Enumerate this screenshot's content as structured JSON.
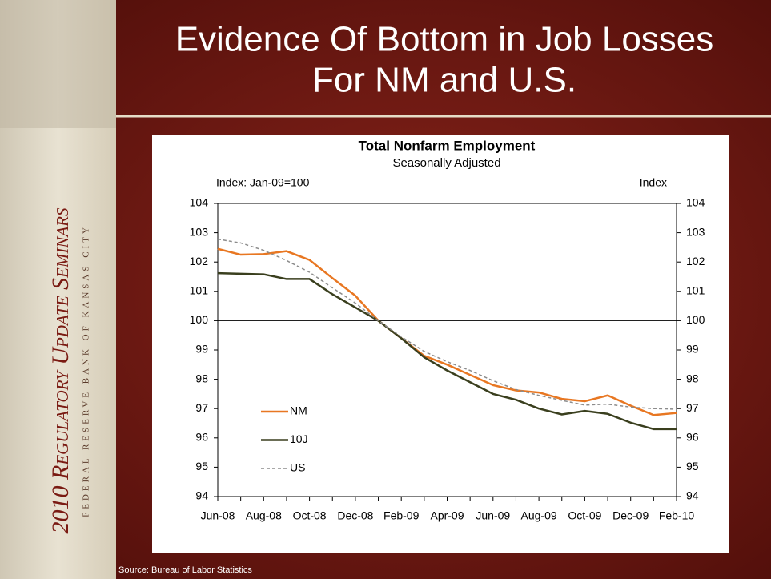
{
  "slide": {
    "title": [
      "Evidence Of Bottom in Job Losses",
      "For NM and U.S."
    ],
    "sidebar_title": "2010 Regulatory Update Seminars",
    "sidebar_subtitle": "Federal Reserve Bank of Kansas City",
    "source": "Source: Bureau of Labor Statistics"
  },
  "chart_data": {
    "type": "line",
    "title": "Total Nonfarm Employment",
    "subtitle": "Seasonally Adjusted",
    "ylabel": "Index: Jan-09=100",
    "y2label": "Index",
    "categories": [
      "Jun-08",
      null,
      "Aug-08",
      null,
      "Oct-08",
      null,
      "Dec-08",
      null,
      "Feb-09",
      null,
      "Apr-09",
      null,
      "Jun-09",
      null,
      "Aug-09",
      null,
      "Oct-09",
      null,
      "Dec-09",
      null,
      "Feb-10"
    ],
    "series": [
      {
        "name": "NM",
        "color": "#e87722",
        "dash": false,
        "values": [
          102.45,
          102.25,
          102.27,
          102.37,
          102.07,
          101.45,
          100.85,
          100,
          99.4,
          98.8,
          98.5,
          98.15,
          97.8,
          97.62,
          97.55,
          97.33,
          97.25,
          97.45,
          97.1,
          96.78,
          96.85
        ]
      },
      {
        "name": "10J",
        "color": "#3a3f1e",
        "dash": false,
        "values": [
          101.62,
          101.6,
          101.58,
          101.42,
          101.42,
          100.9,
          100.45,
          100,
          99.4,
          98.75,
          98.3,
          97.9,
          97.5,
          97.3,
          97.0,
          96.8,
          96.92,
          96.82,
          96.52,
          96.3,
          96.3
        ]
      },
      {
        "name": "US",
        "color": "#8c8c8c",
        "dash": true,
        "values": [
          102.78,
          102.65,
          102.4,
          102.05,
          101.65,
          101.12,
          100.6,
          100,
          99.45,
          98.95,
          98.6,
          98.3,
          97.95,
          97.65,
          97.45,
          97.28,
          97.12,
          97.15,
          97.05,
          97.0,
          96.98
        ]
      }
    ],
    "ylim": [
      94,
      104
    ],
    "yticks": [
      94,
      95,
      96,
      97,
      98,
      99,
      100,
      101,
      102,
      103,
      104
    ],
    "y2lim": [
      94,
      104
    ],
    "y2ticks": [
      94,
      95,
      96,
      97,
      98,
      99,
      100,
      101,
      102,
      103,
      104
    ],
    "reference_line": 100,
    "grid": false,
    "legend": "lower left"
  }
}
